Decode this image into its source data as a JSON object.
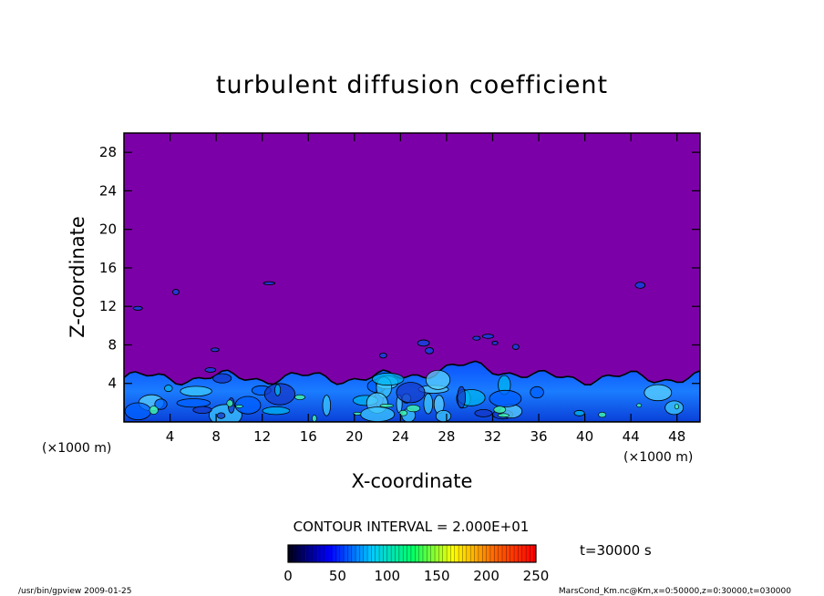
{
  "chart_data": {
    "type": "heatmap",
    "title": "turbulent diffusion coefficient",
    "xlabel": "X-coordinate",
    "ylabel": "Z-coordinate",
    "x_unit": "(×1000 m)",
    "y_unit": "(×1000 m)",
    "xlim": [
      0,
      50
    ],
    "ylim": [
      0,
      30
    ],
    "x_ticks": [
      4,
      8,
      12,
      16,
      20,
      24,
      28,
      32,
      36,
      40,
      44,
      48
    ],
    "y_ticks": [
      4,
      8,
      12,
      16,
      20,
      24,
      28
    ],
    "contour_interval_label": "CONTOUR INTERVAL = 2.000E+01",
    "time_label": "t=30000 s",
    "colorbar": {
      "range": [
        0,
        250
      ],
      "ticks": [
        0,
        50,
        100,
        150,
        200,
        250
      ],
      "colors": [
        "#00001a",
        "#0000ff",
        "#00c8ff",
        "#00ff66",
        "#ffff00",
        "#ff6600",
        "#ff0000"
      ]
    },
    "background_value_color": "#7c00a8",
    "turbulent_layer": {
      "top_z": 5,
      "dome_max_z": 5.7,
      "dome_x_range": [
        24,
        36
      ]
    },
    "footer_left": "/usr/bin/gpview  2009-01-25",
    "footer_right": "MarsCond_Km.nc@Km,x=0:50000,z=0:30000,t=030000"
  }
}
